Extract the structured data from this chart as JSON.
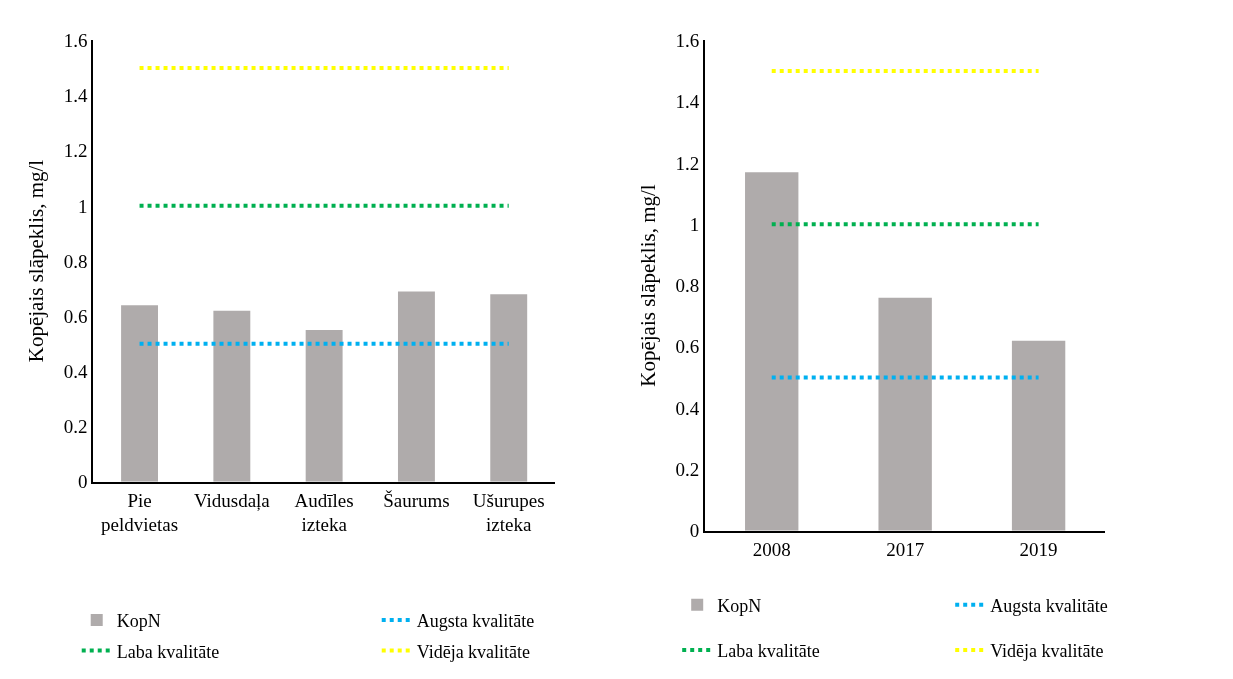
{
  "chart_data": [
    {
      "type": "bar",
      "categories": [
        "Pie peldvietas",
        "Vidusdaļa",
        "Audīles izteka",
        "Šaurums",
        "Ušurupes izteka"
      ],
      "ylabel": "Kopējais slāpeklis, mg/l",
      "ylim": [
        0,
        1.6
      ],
      "yticks": [
        0,
        0.2,
        0.4,
        0.6,
        0.8,
        1,
        1.2,
        1.4,
        1.6
      ],
      "grid": false,
      "legend": "bottom",
      "marker": "none",
      "series": [
        {
          "name": "KopN",
          "color": "#afabab",
          "values": [
            0.64,
            0.62,
            0.55,
            0.69,
            0.68
          ]
        },
        {
          "name": "Augsta kvalitāte",
          "type": "line",
          "line_style": "dotted",
          "color": "#00b0f0",
          "values": [
            0.5,
            0.5,
            0.5,
            0.5,
            0.5
          ]
        },
        {
          "name": "Laba kvalitāte",
          "type": "line",
          "line_style": "dotted",
          "color": "#00b050",
          "values": [
            1,
            1,
            1,
            1,
            1
          ]
        },
        {
          "name": "Vidēja kvalitāte",
          "type": "line",
          "line_style": "dotted",
          "color": "#ffff00",
          "values": [
            1.5,
            1.5,
            1.5,
            1.5,
            1.5
          ]
        }
      ]
    },
    {
      "type": "bar",
      "categories": [
        "2008",
        "2017",
        "2019"
      ],
      "ylabel": "Kopējais slāpeklis, mg/l",
      "ylim": [
        0,
        1.6
      ],
      "yticks": [
        0,
        0.2,
        0.4,
        0.6,
        0.8,
        1,
        1.2,
        1.4,
        1.6
      ],
      "grid": false,
      "legend": "bottom",
      "marker": "none",
      "series": [
        {
          "name": "KopN",
          "color": "#afabab",
          "values": [
            1.17,
            0.76,
            0.62
          ]
        },
        {
          "name": "Augsta kvalitāte",
          "type": "line",
          "line_style": "dotted",
          "color": "#00b0f0",
          "values": [
            0.5,
            0.5,
            0.5
          ]
        },
        {
          "name": "Laba kvalitāte",
          "type": "line",
          "line_style": "dotted",
          "color": "#00b050",
          "values": [
            1,
            1,
            1
          ]
        },
        {
          "name": "Vidēja kvalitāte",
          "type": "line",
          "line_style": "dotted",
          "color": "#ffff00",
          "values": [
            1.5,
            1.5,
            1.5
          ]
        }
      ]
    }
  ]
}
